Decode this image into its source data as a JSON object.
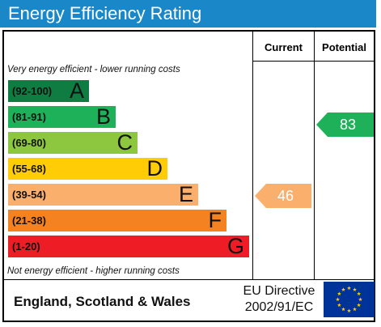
{
  "title": "Energy Efficiency Rating",
  "columns": {
    "current": "Current",
    "potential": "Potential"
  },
  "notes": {
    "top": "Very energy efficient - lower running costs",
    "bottom": "Not energy efficient - higher running costs"
  },
  "bands": [
    {
      "range": "(92-100)",
      "letter": "A",
      "color": "#0f7d42"
    },
    {
      "range": "(81-91)",
      "letter": "B",
      "color": "#1fb15a"
    },
    {
      "range": "(69-80)",
      "letter": "C",
      "color": "#8dc63f"
    },
    {
      "range": "(55-68)",
      "letter": "D",
      "color": "#ffcc05"
    },
    {
      "range": "(39-54)",
      "letter": "E",
      "color": "#fbaf6c"
    },
    {
      "range": "(21-38)",
      "letter": "F",
      "color": "#f58220"
    },
    {
      "range": "(1-20)",
      "letter": "G",
      "color": "#ee1c25"
    }
  ],
  "current": {
    "value": "46",
    "color": "#fbaf6c"
  },
  "potential": {
    "value": "83",
    "color": "#1fb15a"
  },
  "footer": {
    "region": "England, Scotland & Wales",
    "directive_line1": "EU Directive",
    "directive_line2": "2002/91/EC"
  },
  "colors": {
    "title_bar": "#1a87c9",
    "eu_flag_blue": "#003399",
    "eu_flag_stars": "#ffcc00"
  },
  "icons": {
    "flag": "eu-flag-icon"
  }
}
